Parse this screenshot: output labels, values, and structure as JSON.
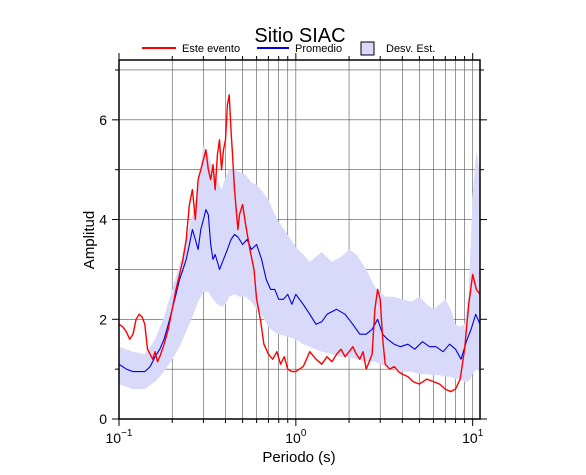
{
  "chart_data": {
    "type": "line",
    "title": "Sitio SIAC",
    "xlabel": "Periodo (s)",
    "ylabel": "Amplitud",
    "xscale": "log",
    "xlim": [
      0.1,
      11
    ],
    "ylim": [
      0,
      7.2
    ],
    "grid": true,
    "legend_placement": "top",
    "x_ticks": [
      {
        "base": "10",
        "exp": "−1",
        "value": 0.1
      },
      {
        "base": "10",
        "exp": "0",
        "value": 1
      },
      {
        "base": "10",
        "exp": "1",
        "value": 10
      }
    ],
    "y_ticks": [
      {
        "label": "0",
        "value": 0
      },
      {
        "label": "2",
        "value": 2
      },
      {
        "label": "4",
        "value": 4
      },
      {
        "label": "6",
        "value": 6
      }
    ],
    "colors": {
      "este_evento": "#ff0000",
      "promedio": "#0000e6",
      "desv": "#d9d9fa"
    },
    "legend": [
      {
        "key": "este_evento",
        "label": "Este evento",
        "kind": "line"
      },
      {
        "key": "promedio",
        "label": "Promedio",
        "kind": "line"
      },
      {
        "key": "desv",
        "label": "Desv. Est.",
        "kind": "box"
      }
    ],
    "series": [
      {
        "name": "Este evento",
        "key": "este_evento",
        "x": [
          0.1,
          0.105,
          0.11,
          0.115,
          0.12,
          0.125,
          0.13,
          0.135,
          0.14,
          0.145,
          0.15,
          0.155,
          0.16,
          0.165,
          0.17,
          0.18,
          0.19,
          0.2,
          0.21,
          0.22,
          0.23,
          0.24,
          0.25,
          0.26,
          0.27,
          0.28,
          0.29,
          0.3,
          0.31,
          0.32,
          0.33,
          0.34,
          0.35,
          0.36,
          0.37,
          0.38,
          0.39,
          0.4,
          0.41,
          0.42,
          0.43,
          0.44,
          0.45,
          0.46,
          0.47,
          0.48,
          0.5,
          0.52,
          0.55,
          0.58,
          0.6,
          0.63,
          0.66,
          0.7,
          0.74,
          0.78,
          0.82,
          0.86,
          0.9,
          0.95,
          1.0,
          1.1,
          1.2,
          1.3,
          1.4,
          1.5,
          1.6,
          1.7,
          1.8,
          1.9,
          2.0,
          2.1,
          2.2,
          2.3,
          2.4,
          2.5,
          2.6,
          2.7,
          2.8,
          2.9,
          3.0,
          3.1,
          3.2,
          3.4,
          3.6,
          3.8,
          4.0,
          4.3,
          4.6,
          5.0,
          5.5,
          6.0,
          6.5,
          7.0,
          7.5,
          8.0,
          8.5,
          9.0,
          9.5,
          10.0,
          10.5,
          11.0
        ],
        "y": [
          1.9,
          1.85,
          1.75,
          1.6,
          1.7,
          2.0,
          2.1,
          2.05,
          1.9,
          1.4,
          1.3,
          1.2,
          1.35,
          1.15,
          1.25,
          1.5,
          1.8,
          2.2,
          2.6,
          2.9,
          3.2,
          3.6,
          4.3,
          4.6,
          4.0,
          4.8,
          5.0,
          5.2,
          5.4,
          5.0,
          4.8,
          5.1,
          4.6,
          5.3,
          5.6,
          5.0,
          5.4,
          5.6,
          6.3,
          6.5,
          5.8,
          5.2,
          4.6,
          4.2,
          3.8,
          4.1,
          4.3,
          3.9,
          3.4,
          3.0,
          2.4,
          2.0,
          1.5,
          1.3,
          1.2,
          1.35,
          1.1,
          1.25,
          1.0,
          0.95,
          0.95,
          1.05,
          1.35,
          1.2,
          1.1,
          1.25,
          1.15,
          1.3,
          1.4,
          1.25,
          1.35,
          1.45,
          1.3,
          1.2,
          1.35,
          1.0,
          1.15,
          1.3,
          2.2,
          2.6,
          2.4,
          1.6,
          1.1,
          1.0,
          1.05,
          0.95,
          0.9,
          0.85,
          0.75,
          0.7,
          0.8,
          0.75,
          0.7,
          0.6,
          0.55,
          0.6,
          0.8,
          1.4,
          2.3,
          2.9,
          2.6,
          2.5
        ]
      },
      {
        "name": "Promedio",
        "key": "promedio",
        "x": [
          0.1,
          0.11,
          0.12,
          0.13,
          0.14,
          0.15,
          0.16,
          0.17,
          0.18,
          0.19,
          0.2,
          0.21,
          0.22,
          0.23,
          0.24,
          0.25,
          0.26,
          0.27,
          0.28,
          0.29,
          0.3,
          0.31,
          0.32,
          0.33,
          0.34,
          0.35,
          0.37,
          0.39,
          0.41,
          0.43,
          0.45,
          0.47,
          0.5,
          0.53,
          0.56,
          0.6,
          0.64,
          0.68,
          0.72,
          0.76,
          0.8,
          0.85,
          0.9,
          0.95,
          1.0,
          1.1,
          1.2,
          1.3,
          1.4,
          1.5,
          1.7,
          1.9,
          2.1,
          2.3,
          2.5,
          2.7,
          2.9,
          3.1,
          3.3,
          3.6,
          3.9,
          4.3,
          4.7,
          5.2,
          5.7,
          6.2,
          6.8,
          7.4,
          8.0,
          8.6,
          9.2,
          9.8,
          10.4,
          11.0
        ],
        "y": [
          1.1,
          1.0,
          0.95,
          0.95,
          0.95,
          1.05,
          1.25,
          1.4,
          1.6,
          1.9,
          2.2,
          2.5,
          2.8,
          3.0,
          3.2,
          3.5,
          3.8,
          3.6,
          3.4,
          3.8,
          4.0,
          4.2,
          4.1,
          3.5,
          3.2,
          3.3,
          3.0,
          3.2,
          3.4,
          3.6,
          3.7,
          3.65,
          3.5,
          3.6,
          3.4,
          3.5,
          3.2,
          2.8,
          2.6,
          2.6,
          2.4,
          2.4,
          2.5,
          2.3,
          2.5,
          2.3,
          2.1,
          1.9,
          1.95,
          2.1,
          2.2,
          2.1,
          1.9,
          1.7,
          1.7,
          1.8,
          2.0,
          1.7,
          1.6,
          1.5,
          1.45,
          1.5,
          1.4,
          1.55,
          1.45,
          1.45,
          1.35,
          1.5,
          1.4,
          1.2,
          1.55,
          1.8,
          2.1,
          1.9
        ]
      }
    ],
    "band": {
      "name": "Desv. Est.",
      "key": "desv",
      "x": [
        0.1,
        0.12,
        0.14,
        0.16,
        0.18,
        0.2,
        0.22,
        0.24,
        0.26,
        0.28,
        0.3,
        0.32,
        0.34,
        0.36,
        0.38,
        0.4,
        0.42,
        0.45,
        0.48,
        0.52,
        0.56,
        0.6,
        0.65,
        0.7,
        0.75,
        0.8,
        0.9,
        1.0,
        1.1,
        1.2,
        1.4,
        1.6,
        1.8,
        2.0,
        2.2,
        2.5,
        2.8,
        3.2,
        3.6,
        4.0,
        4.5,
        5.0,
        5.5,
        6.0,
        6.5,
        7.0,
        7.5,
        8.0,
        8.5,
        9.0,
        9.5,
        10.0,
        10.5,
        11.0
      ],
      "lower": [
        0.7,
        0.6,
        0.6,
        0.75,
        0.95,
        1.2,
        1.45,
        1.75,
        2.05,
        2.35,
        2.55,
        2.55,
        2.4,
        2.3,
        2.25,
        2.3,
        2.45,
        2.5,
        2.45,
        2.45,
        2.35,
        2.2,
        2.05,
        1.85,
        1.75,
        1.7,
        1.65,
        1.6,
        1.5,
        1.45,
        1.35,
        1.3,
        1.25,
        1.25,
        1.2,
        1.15,
        1.15,
        1.05,
        1.0,
        0.95,
        0.95,
        0.9,
        0.9,
        0.88,
        0.88,
        0.85,
        0.85,
        0.8,
        0.8,
        0.75,
        0.75,
        0.9,
        1.0,
        0.95
      ],
      "upper": [
        1.45,
        1.35,
        1.3,
        1.6,
        2.05,
        2.6,
        3.1,
        3.6,
        4.1,
        4.6,
        5.5,
        5.3,
        5.0,
        4.8,
        4.6,
        4.85,
        5.0,
        5.0,
        4.95,
        4.9,
        4.75,
        4.7,
        4.55,
        4.4,
        4.15,
        3.95,
        3.7,
        3.45,
        3.3,
        3.15,
        3.35,
        3.15,
        3.25,
        3.4,
        3.3,
        3.0,
        2.65,
        2.45,
        2.45,
        2.4,
        2.35,
        2.45,
        2.3,
        2.2,
        2.3,
        2.4,
        2.2,
        1.9,
        1.85,
        1.9,
        2.5,
        4.5,
        5.4,
        4.9
      ]
    }
  }
}
